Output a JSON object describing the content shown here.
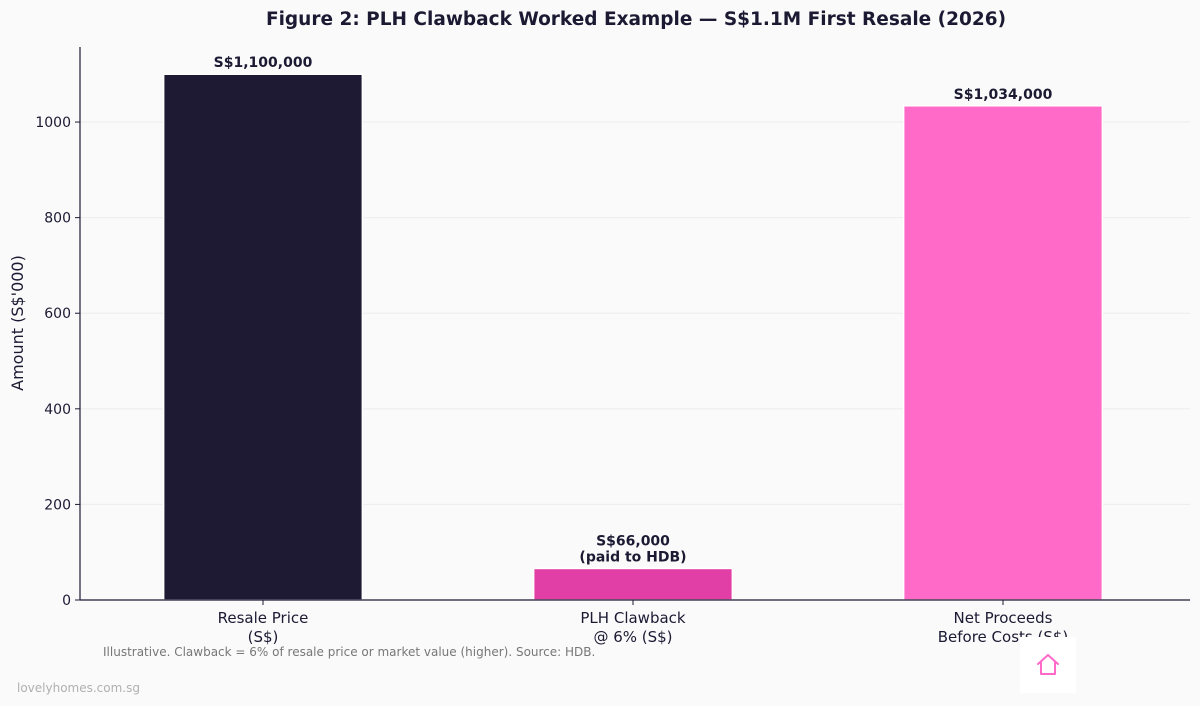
{
  "chart_data": {
    "type": "bar",
    "title": "Figure 2: PLH Clawback Worked Example — S$1.1M First Resale (2026)",
    "ylabel": "Amount (S$'000)",
    "xlabel": "",
    "ylim": [
      0,
      1157
    ],
    "yticks": [
      0,
      200,
      400,
      600,
      800,
      1000
    ],
    "grid": true,
    "categories": [
      [
        "Resale Price",
        "(S$)"
      ],
      [
        "PLH Clawback",
        "@ 6% (S$)"
      ],
      [
        "Net Proceeds",
        "Before Costs (S$)"
      ]
    ],
    "values": [
      1100,
      66,
      1034
    ],
    "data_labels": [
      [
        "S$1,100,000"
      ],
      [
        "S$66,000",
        "(paid to HDB)"
      ],
      [
        "S$1,034,000"
      ]
    ],
    "colors": [
      "#1e1a33",
      "#e23fa6",
      "#ff69c8"
    ],
    "note": "Illustrative. Clawback = 6% of resale price or market value (higher). Source: HDB."
  },
  "footer": {
    "site": "lovelyhomes.com.sg",
    "logo_icon": "house-icon",
    "logo_color": "#ff69c8"
  }
}
